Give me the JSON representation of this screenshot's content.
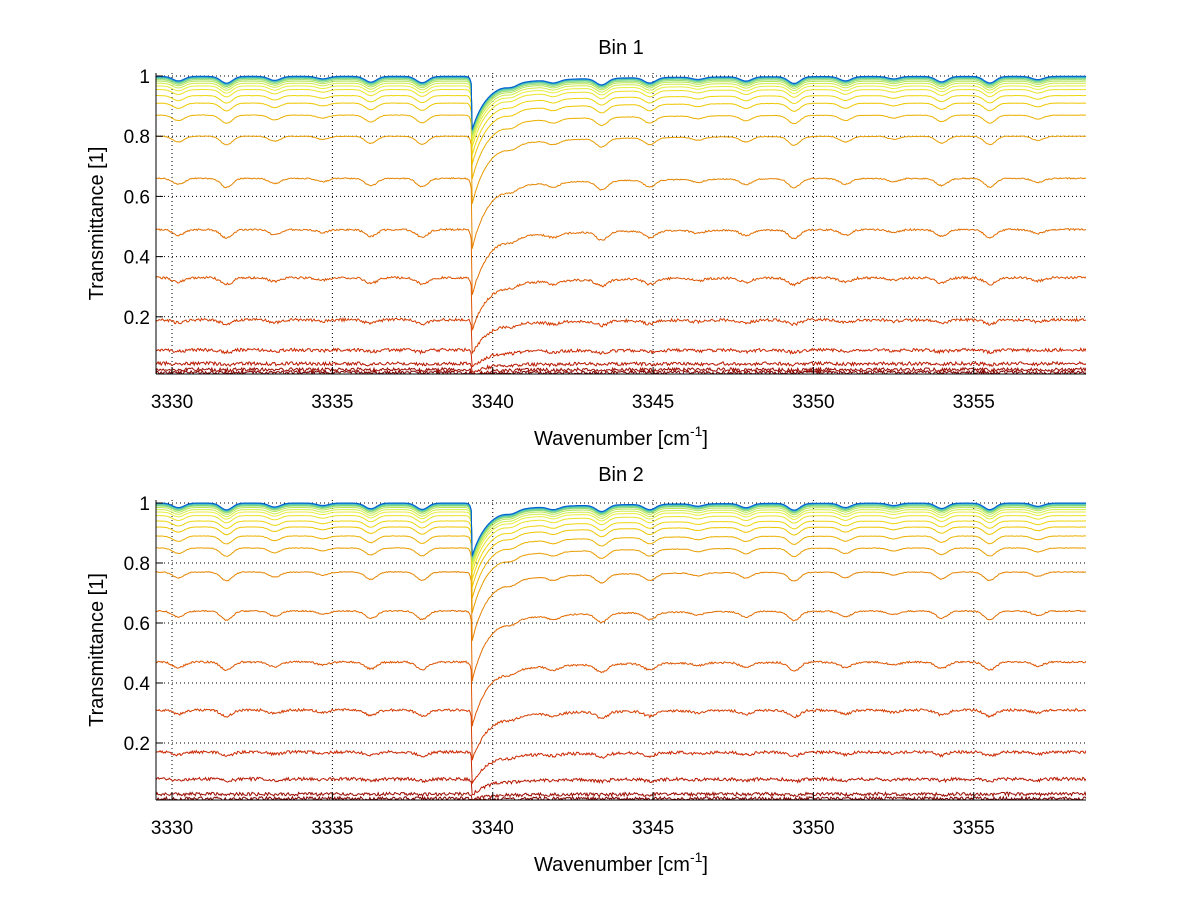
{
  "chart_data": [
    {
      "type": "line",
      "title": "Bin 1",
      "xlabel_base": "Wavenumber [cm",
      "xlabel_sup": "-1",
      "xlabel_close": "]",
      "ylabel": "Transmittance [1]",
      "xlim": [
        3329.5,
        3358.5
      ],
      "ylim": [
        0.01,
        1.01
      ],
      "xticks": [
        3330,
        3335,
        3340,
        3345,
        3350,
        3355
      ],
      "yticks": [
        0.2,
        0.4,
        0.6,
        0.8,
        1
      ],
      "xtick_labels": [
        "3330",
        "3335",
        "3340",
        "3345",
        "3350",
        "3355"
      ],
      "ytick_labels": [
        "0.2",
        "0.4",
        "0.6",
        "0.8",
        "1"
      ],
      "grid": true,
      "series_baselines": [
        0.015,
        0.025,
        0.045,
        0.09,
        0.19,
        0.33,
        0.49,
        0.66,
        0.8,
        0.87,
        0.91,
        0.935,
        0.955,
        0.967,
        0.976,
        0.983,
        0.988,
        0.992,
        0.995,
        0.997,
        0.998,
        0.999
      ],
      "strong_line_center": 3339.4
    },
    {
      "type": "line",
      "title": "Bin 2",
      "xlabel_base": "Wavenumber [cm",
      "xlabel_sup": "-1",
      "xlabel_close": "]",
      "ylabel": "Transmittance [1]",
      "xlim": [
        3329.5,
        3358.5
      ],
      "ylim": [
        0.01,
        1.01
      ],
      "xticks": [
        3330,
        3335,
        3340,
        3345,
        3350,
        3355
      ],
      "yticks": [
        0.2,
        0.4,
        0.6,
        0.8,
        1
      ],
      "xtick_labels": [
        "3330",
        "3335",
        "3340",
        "3345",
        "3350",
        "3355"
      ],
      "ytick_labels": [
        "0.2",
        "0.4",
        "0.6",
        "0.8",
        "1"
      ],
      "grid": true,
      "series_baselines": [
        0.015,
        0.03,
        0.08,
        0.17,
        0.31,
        0.47,
        0.64,
        0.77,
        0.85,
        0.89,
        0.92,
        0.94,
        0.958,
        0.97,
        0.978,
        0.985,
        0.99,
        0.993,
        0.996,
        0.998,
        0.999,
        1.0
      ],
      "strong_line_center": 3339.4
    }
  ],
  "colors": {
    "axis": "#000000",
    "grid": "#000000",
    "colormap": [
      "#7f0000",
      "#c81e00",
      "#e05a00",
      "#e89a00",
      "#f0d000",
      "#e8f040",
      "#a0e060",
      "#40c0c0",
      "#0060d0"
    ]
  }
}
